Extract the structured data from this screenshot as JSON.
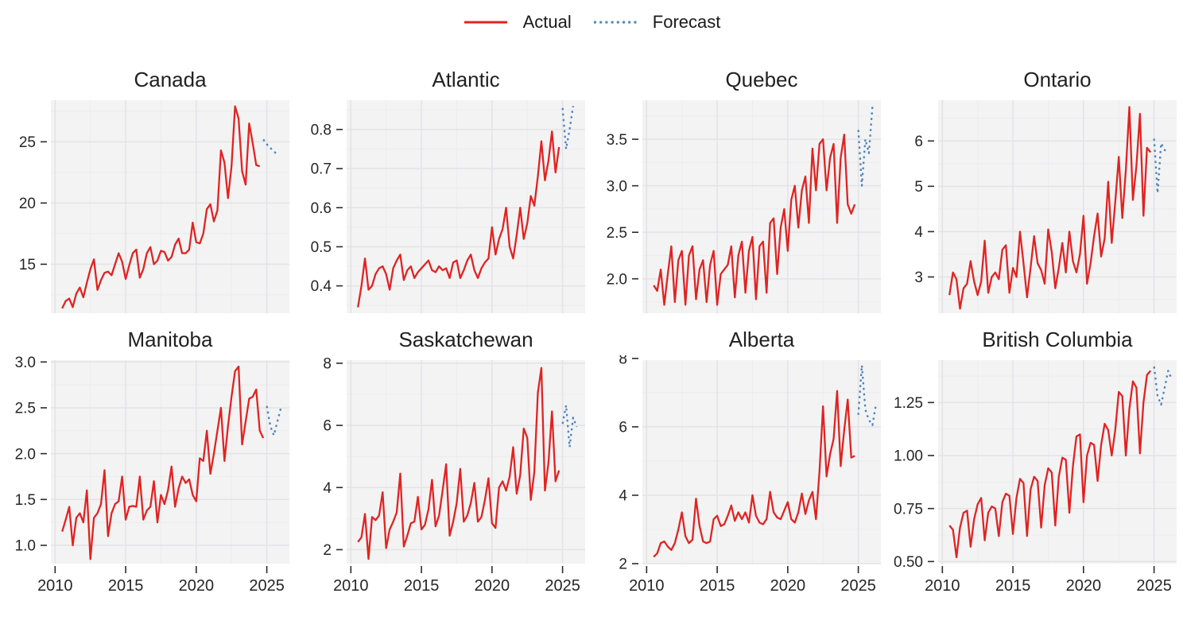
{
  "legend": {
    "actual_label": "Actual",
    "forecast_label": "Forecast"
  },
  "colors": {
    "actual": "#e02420",
    "forecast": "#4c84c0",
    "panel_bg": "#f3f3f4",
    "grid_minor": "#ececee",
    "grid_major": "#e3e3e6",
    "tick": "#2b2b2b",
    "tick_label": "#262626",
    "title": "#212121"
  },
  "chart_data": [
    {
      "type": "line",
      "title": "Canada",
      "show_x_labels": false,
      "t_start": 2010.5,
      "t_step": 0.25,
      "xlim": [
        2009.7,
        2026.6
      ],
      "ylim": [
        11.0,
        28.4
      ],
      "x_ticks": [
        {
          "v": 2010,
          "label": "2010"
        },
        {
          "v": 2015,
          "label": "2015"
        },
        {
          "v": 2020,
          "label": "2020"
        },
        {
          "v": 2025,
          "label": "2025"
        }
      ],
      "x_minor": [
        2012.5,
        2017.5,
        2022.5
      ],
      "y_ticks": [
        {
          "v": 15,
          "label": "15"
        },
        {
          "v": 20,
          "label": "20"
        },
        {
          "v": 25,
          "label": "25"
        }
      ],
      "y_minor": [
        12.5,
        17.5,
        22.5,
        27.5
      ],
      "actual": [
        11.4,
        12.0,
        12.2,
        11.5,
        12.6,
        13.1,
        12.3,
        13.5,
        14.6,
        15.4,
        12.9,
        13.7,
        14.3,
        14.4,
        14.1,
        15.0,
        15.9,
        15.2,
        13.8,
        14.9,
        15.9,
        16.2,
        13.9,
        14.6,
        15.9,
        16.4,
        15.0,
        15.3,
        16.1,
        16.0,
        15.3,
        15.6,
        16.6,
        17.1,
        15.9,
        15.9,
        16.2,
        18.4,
        16.8,
        16.7,
        17.5,
        19.5,
        19.9,
        18.5,
        19.4,
        24.3,
        23.3,
        20.4,
        23.0,
        27.9,
        26.9,
        22.6,
        21.5,
        26.5,
        24.9,
        23.1,
        23.0
      ],
      "forecast": [
        25.2,
        24.8,
        24.5,
        24.2,
        24.0
      ]
    },
    {
      "type": "line",
      "title": "Atlantic",
      "show_x_labels": false,
      "t_start": 2010.5,
      "t_step": 0.25,
      "xlim": [
        2009.7,
        2026.6
      ],
      "ylim": [
        0.33,
        0.875
      ],
      "x_ticks": [
        {
          "v": 2010,
          "label": "2010"
        },
        {
          "v": 2015,
          "label": "2015"
        },
        {
          "v": 2020,
          "label": "2020"
        },
        {
          "v": 2025,
          "label": "2025"
        }
      ],
      "x_minor": [
        2012.5,
        2017.5,
        2022.5
      ],
      "y_ticks": [
        {
          "v": 0.4,
          "label": "0.4"
        },
        {
          "v": 0.5,
          "label": "0.5"
        },
        {
          "v": 0.6,
          "label": "0.6"
        },
        {
          "v": 0.7,
          "label": "0.7"
        },
        {
          "v": 0.8,
          "label": "0.8"
        }
      ],
      "y_minor": [
        0.35,
        0.45,
        0.55,
        0.65,
        0.75,
        0.85
      ],
      "actual": [
        0.345,
        0.4,
        0.47,
        0.39,
        0.4,
        0.43,
        0.445,
        0.45,
        0.43,
        0.39,
        0.445,
        0.465,
        0.48,
        0.415,
        0.44,
        0.45,
        0.42,
        0.435,
        0.445,
        0.455,
        0.465,
        0.44,
        0.435,
        0.45,
        0.44,
        0.445,
        0.42,
        0.46,
        0.465,
        0.42,
        0.44,
        0.465,
        0.48,
        0.44,
        0.42,
        0.445,
        0.46,
        0.47,
        0.55,
        0.48,
        0.52,
        0.545,
        0.6,
        0.5,
        0.47,
        0.53,
        0.6,
        0.52,
        0.56,
        0.63,
        0.605,
        0.68,
        0.77,
        0.67,
        0.72,
        0.795,
        0.69,
        0.755
      ],
      "forecast": [
        0.855,
        0.75,
        0.8,
        0.86
      ]
    },
    {
      "type": "line",
      "title": "Quebec",
      "show_x_labels": false,
      "t_start": 2010.5,
      "t_step": 0.25,
      "xlim": [
        2009.7,
        2026.6
      ],
      "ylim": [
        1.63,
        3.92
      ],
      "x_ticks": [
        {
          "v": 2010,
          "label": "2010"
        },
        {
          "v": 2015,
          "label": "2015"
        },
        {
          "v": 2020,
          "label": "2020"
        },
        {
          "v": 2025,
          "label": "2025"
        }
      ],
      "x_minor": [
        2012.5,
        2017.5,
        2022.5
      ],
      "y_ticks": [
        {
          "v": 2.0,
          "label": "2.0"
        },
        {
          "v": 2.5,
          "label": "2.5"
        },
        {
          "v": 3.0,
          "label": "3.0"
        },
        {
          "v": 3.5,
          "label": "3.5"
        }
      ],
      "y_minor": [
        1.75,
        2.25,
        2.75,
        3.25,
        3.75
      ],
      "actual": [
        1.93,
        1.87,
        2.1,
        1.72,
        2.05,
        2.35,
        1.75,
        2.2,
        2.3,
        1.72,
        2.25,
        2.35,
        1.78,
        2.1,
        2.2,
        1.75,
        2.15,
        2.3,
        1.72,
        2.05,
        2.1,
        2.15,
        2.35,
        1.8,
        2.25,
        2.4,
        1.85,
        2.3,
        2.45,
        1.78,
        2.35,
        2.4,
        1.85,
        2.6,
        2.65,
        2.05,
        2.55,
        2.75,
        2.3,
        2.85,
        3.0,
        2.55,
        2.95,
        3.1,
        2.6,
        3.4,
        2.95,
        3.45,
        3.5,
        2.95,
        3.3,
        3.45,
        2.6,
        3.3,
        3.55,
        2.8,
        2.7,
        2.8
      ],
      "forecast": [
        3.6,
        3.0,
        3.5,
        3.35,
        3.85
      ]
    },
    {
      "type": "line",
      "title": "Ontario",
      "show_x_labels": false,
      "t_start": 2010.5,
      "t_step": 0.25,
      "xlim": [
        2009.7,
        2026.6
      ],
      "ylim": [
        2.2,
        6.9
      ],
      "x_ticks": [
        {
          "v": 2010,
          "label": "2010"
        },
        {
          "v": 2015,
          "label": "2015"
        },
        {
          "v": 2020,
          "label": "2020"
        },
        {
          "v": 2025,
          "label": "2025"
        }
      ],
      "x_minor": [
        2012.5,
        2017.5,
        2022.5
      ],
      "y_ticks": [
        {
          "v": 3,
          "label": "3"
        },
        {
          "v": 4,
          "label": "4"
        },
        {
          "v": 5,
          "label": "5"
        },
        {
          "v": 6,
          "label": "6"
        }
      ],
      "y_minor": [
        2.5,
        3.5,
        4.5,
        5.5,
        6.5
      ],
      "actual": [
        2.6,
        3.1,
        2.95,
        2.3,
        2.75,
        2.85,
        3.35,
        2.9,
        2.6,
        2.9,
        3.8,
        2.65,
        3.0,
        3.1,
        2.95,
        3.6,
        3.7,
        2.65,
        3.2,
        3.0,
        4.0,
        3.3,
        2.55,
        3.2,
        3.9,
        3.3,
        3.15,
        2.85,
        4.05,
        3.55,
        2.75,
        3.2,
        3.75,
        3.1,
        4.0,
        3.35,
        3.1,
        3.5,
        4.35,
        2.85,
        3.3,
        3.9,
        4.4,
        3.45,
        3.85,
        5.1,
        3.75,
        4.65,
        5.65,
        4.3,
        5.35,
        6.75,
        4.7,
        5.45,
        6.6,
        4.35,
        5.85,
        5.75
      ],
      "forecast": [
        6.05,
        4.85,
        5.95,
        5.8,
        5.75
      ]
    },
    {
      "type": "line",
      "title": "Manitoba",
      "show_x_labels": true,
      "t_start": 2010.5,
      "t_step": 0.25,
      "xlim": [
        2009.7,
        2026.6
      ],
      "ylim": [
        0.8,
        3.02
      ],
      "x_ticks": [
        {
          "v": 2010,
          "label": "2010"
        },
        {
          "v": 2015,
          "label": "2015"
        },
        {
          "v": 2020,
          "label": "2020"
        },
        {
          "v": 2025,
          "label": "2025"
        }
      ],
      "x_minor": [
        2012.5,
        2017.5,
        2022.5
      ],
      "y_ticks": [
        {
          "v": 1.0,
          "label": "1.0"
        },
        {
          "v": 1.5,
          "label": "1.5"
        },
        {
          "v": 2.0,
          "label": "2.0"
        },
        {
          "v": 2.5,
          "label": "2.5"
        },
        {
          "v": 3.0,
          "label": "3.0"
        }
      ],
      "y_minor": [
        1.25,
        1.75,
        2.25,
        2.75
      ],
      "actual": [
        1.15,
        1.28,
        1.42,
        1.0,
        1.3,
        1.35,
        1.25,
        1.6,
        0.85,
        1.3,
        1.35,
        1.45,
        1.82,
        1.1,
        1.35,
        1.45,
        1.48,
        1.75,
        1.28,
        1.42,
        1.43,
        1.42,
        1.75,
        1.28,
        1.38,
        1.42,
        1.7,
        1.25,
        1.55,
        1.45,
        1.6,
        1.86,
        1.42,
        1.62,
        1.75,
        1.68,
        1.72,
        1.55,
        1.48,
        1.95,
        1.92,
        2.25,
        1.78,
        2.0,
        2.25,
        2.5,
        1.92,
        2.3,
        2.62,
        2.9,
        2.95,
        2.1,
        2.35,
        2.6,
        2.62,
        2.7,
        2.25,
        2.17
      ],
      "forecast": [
        2.52,
        2.3,
        2.2,
        2.35,
        2.5
      ]
    },
    {
      "type": "line",
      "title": "Saskatchewan",
      "show_x_labels": true,
      "t_start": 2010.5,
      "t_step": 0.25,
      "xlim": [
        2009.7,
        2026.6
      ],
      "ylim": [
        1.55,
        8.1
      ],
      "x_ticks": [
        {
          "v": 2010,
          "label": "2010"
        },
        {
          "v": 2015,
          "label": "2015"
        },
        {
          "v": 2020,
          "label": "2020"
        },
        {
          "v": 2025,
          "label": "2025"
        }
      ],
      "x_minor": [
        2012.5,
        2017.5,
        2022.5
      ],
      "y_ticks": [
        {
          "v": 2,
          "label": "2"
        },
        {
          "v": 4,
          "label": "4"
        },
        {
          "v": 6,
          "label": "6"
        },
        {
          "v": 8,
          "label": "8"
        }
      ],
      "y_minor": [
        3,
        5,
        7
      ],
      "actual": [
        2.25,
        2.4,
        3.15,
        1.7,
        3.05,
        2.95,
        3.1,
        3.85,
        2.05,
        2.65,
        2.9,
        3.2,
        4.45,
        2.1,
        2.45,
        2.85,
        2.9,
        3.7,
        2.65,
        2.8,
        3.3,
        4.25,
        2.75,
        3.1,
        3.9,
        4.75,
        2.45,
        2.9,
        3.5,
        4.6,
        2.9,
        3.1,
        3.5,
        4.15,
        2.9,
        3.05,
        3.6,
        4.3,
        2.85,
        2.7,
        4.0,
        4.2,
        3.9,
        4.35,
        5.3,
        3.8,
        4.4,
        5.9,
        5.6,
        3.6,
        4.5,
        7.05,
        7.85,
        3.9,
        4.8,
        6.45,
        4.2,
        4.55
      ],
      "forecast": [
        6.05,
        6.65,
        5.3,
        6.25,
        5.95
      ]
    },
    {
      "type": "line",
      "title": "Alberta",
      "show_x_labels": true,
      "t_start": 2010.5,
      "t_step": 0.25,
      "xlim": [
        2009.7,
        2026.6
      ],
      "ylim": [
        2.0,
        7.95
      ],
      "x_ticks": [
        {
          "v": 2010,
          "label": "2010"
        },
        {
          "v": 2015,
          "label": "2015"
        },
        {
          "v": 2020,
          "label": "2020"
        },
        {
          "v": 2025,
          "label": "2025"
        }
      ],
      "x_minor": [
        2012.5,
        2017.5,
        2022.5
      ],
      "y_ticks": [
        {
          "v": 2,
          "label": "2"
        },
        {
          "v": 4,
          "label": "4"
        },
        {
          "v": 6,
          "label": "6"
        },
        {
          "v": 8,
          "label": "8"
        }
      ],
      "y_minor": [
        3,
        5,
        7
      ],
      "actual": [
        2.2,
        2.3,
        2.6,
        2.65,
        2.5,
        2.4,
        2.6,
        3.0,
        3.5,
        2.8,
        2.6,
        2.7,
        3.9,
        3.1,
        2.65,
        2.6,
        2.65,
        3.3,
        3.4,
        3.1,
        3.15,
        3.4,
        3.7,
        3.25,
        3.5,
        3.3,
        3.5,
        3.2,
        4.0,
        3.4,
        3.2,
        3.15,
        3.3,
        4.1,
        3.5,
        3.35,
        3.3,
        3.55,
        3.8,
        3.3,
        3.2,
        3.5,
        4.05,
        3.45,
        3.85,
        4.1,
        3.3,
        4.7,
        6.6,
        4.55,
        5.2,
        5.65,
        7.05,
        4.85,
        5.9,
        6.8,
        5.1,
        5.15
      ],
      "forecast": [
        6.35,
        7.8,
        6.5,
        6.2,
        6.05,
        6.65
      ]
    },
    {
      "type": "line",
      "title": "British Columbia",
      "show_x_labels": true,
      "t_start": 2010.5,
      "t_step": 0.25,
      "xlim": [
        2009.7,
        2026.6
      ],
      "ylim": [
        0.49,
        1.45
      ],
      "x_ticks": [
        {
          "v": 2010,
          "label": "2010"
        },
        {
          "v": 2015,
          "label": "2015"
        },
        {
          "v": 2020,
          "label": "2020"
        },
        {
          "v": 2025,
          "label": "2025"
        }
      ],
      "x_minor": [
        2012.5,
        2017.5,
        2022.5
      ],
      "y_ticks": [
        {
          "v": 0.5,
          "label": "0.50"
        },
        {
          "v": 0.75,
          "label": "0.75"
        },
        {
          "v": 1.0,
          "label": "1.00"
        },
        {
          "v": 1.25,
          "label": "1.25"
        }
      ],
      "y_minor": [
        0.625,
        0.875,
        1.125,
        1.375
      ],
      "actual": [
        0.67,
        0.65,
        0.52,
        0.66,
        0.73,
        0.74,
        0.57,
        0.7,
        0.77,
        0.8,
        0.6,
        0.73,
        0.76,
        0.75,
        0.62,
        0.78,
        0.82,
        0.81,
        0.63,
        0.8,
        0.89,
        0.87,
        0.62,
        0.84,
        0.9,
        0.88,
        0.66,
        0.86,
        0.94,
        0.92,
        0.67,
        0.9,
        0.99,
        0.98,
        0.73,
        0.95,
        1.09,
        1.1,
        0.78,
        1.0,
        1.06,
        1.05,
        0.88,
        1.05,
        1.15,
        1.12,
        1.0,
        1.12,
        1.3,
        1.28,
        1.0,
        1.22,
        1.35,
        1.32,
        1.01,
        1.25,
        1.38,
        1.4
      ],
      "forecast": [
        1.42,
        1.28,
        1.24,
        1.32,
        1.4,
        1.36
      ]
    }
  ]
}
